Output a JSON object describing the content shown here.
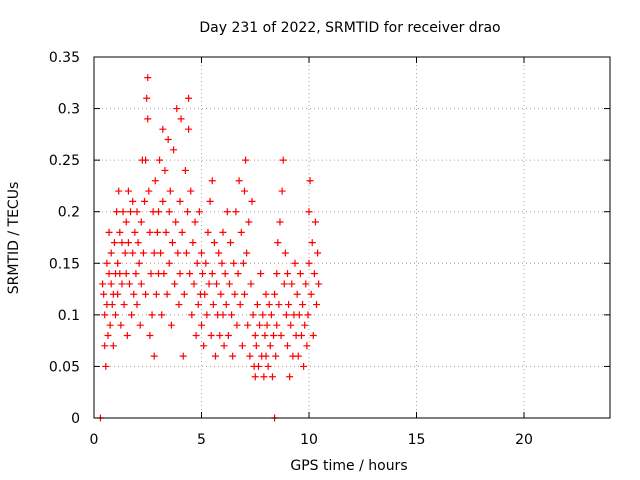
{
  "chart_data": {
    "type": "scatter",
    "title": "Day 231 of 2022, SRMTID for receiver drao",
    "xlabel": "GPS time / hours",
    "ylabel": "SRMTID / TECUs",
    "xlim": [
      0,
      24
    ],
    "ylim": [
      0,
      0.35
    ],
    "x_ticks": [
      0,
      5,
      10,
      15,
      20
    ],
    "x_tick_labels": [
      "0",
      "5",
      "10",
      "15",
      "20"
    ],
    "y_ticks": [
      0,
      0.05,
      0.1,
      0.15,
      0.2,
      0.25,
      0.3,
      0.35
    ],
    "y_tick_labels": [
      "0",
      "0.05",
      "0.1",
      "0.15",
      "0.2",
      "0.25",
      "0.3",
      "0.35"
    ],
    "grid": true,
    "marker": "plus",
    "color": "#ff0000",
    "series": [
      {
        "values": [
          [
            0.3,
            0.0
          ],
          [
            8.4,
            0.0
          ],
          [
            0.4,
            0.13
          ],
          [
            0.45,
            0.12
          ],
          [
            0.5,
            0.1
          ],
          [
            0.5,
            0.07
          ],
          [
            0.55,
            0.05
          ],
          [
            0.6,
            0.15
          ],
          [
            0.6,
            0.11
          ],
          [
            0.65,
            0.08
          ],
          [
            0.7,
            0.14
          ],
          [
            0.7,
            0.18
          ],
          [
            0.75,
            0.09
          ],
          [
            0.8,
            0.13
          ],
          [
            0.8,
            0.16
          ],
          [
            0.85,
            0.11
          ],
          [
            0.9,
            0.07
          ],
          [
            0.9,
            0.12
          ],
          [
            0.95,
            0.17
          ],
          [
            1.0,
            0.14
          ],
          [
            1.0,
            0.1
          ],
          [
            1.05,
            0.2
          ],
          [
            1.1,
            0.15
          ],
          [
            1.1,
            0.12
          ],
          [
            1.15,
            0.22
          ],
          [
            1.2,
            0.18
          ],
          [
            1.2,
            0.14
          ],
          [
            1.25,
            0.09
          ],
          [
            1.3,
            0.17
          ],
          [
            1.3,
            0.13
          ],
          [
            1.35,
            0.2
          ],
          [
            1.4,
            0.11
          ],
          [
            1.45,
            0.16
          ],
          [
            1.5,
            0.19
          ],
          [
            1.5,
            0.14
          ],
          [
            1.55,
            0.08
          ],
          [
            1.6,
            0.22
          ],
          [
            1.6,
            0.17
          ],
          [
            1.65,
            0.13
          ],
          [
            1.7,
            0.2
          ],
          [
            1.75,
            0.1
          ],
          [
            1.8,
            0.16
          ],
          [
            1.8,
            0.21
          ],
          [
            1.85,
            0.12
          ],
          [
            1.9,
            0.18
          ],
          [
            1.95,
            0.14
          ],
          [
            2.0,
            0.2
          ],
          [
            2.0,
            0.11
          ],
          [
            2.05,
            0.17
          ],
          [
            2.1,
            0.15
          ],
          [
            2.15,
            0.09
          ],
          [
            2.2,
            0.19
          ],
          [
            2.2,
            0.13
          ],
          [
            2.25,
            0.25
          ],
          [
            2.3,
            0.16
          ],
          [
            2.35,
            0.21
          ],
          [
            2.4,
            0.25
          ],
          [
            2.4,
            0.12
          ],
          [
            2.45,
            0.31
          ],
          [
            2.5,
            0.33
          ],
          [
            2.5,
            0.29
          ],
          [
            2.55,
            0.22
          ],
          [
            2.6,
            0.18
          ],
          [
            2.6,
            0.08
          ],
          [
            2.65,
            0.14
          ],
          [
            2.7,
            0.1
          ],
          [
            2.75,
            0.2
          ],
          [
            2.8,
            0.06
          ],
          [
            2.8,
            0.16
          ],
          [
            2.85,
            0.23
          ],
          [
            2.9,
            0.12
          ],
          [
            2.95,
            0.18
          ],
          [
            3.0,
            0.2
          ],
          [
            3.0,
            0.14
          ],
          [
            3.05,
            0.25
          ],
          [
            3.1,
            0.16
          ],
          [
            3.15,
            0.1
          ],
          [
            3.2,
            0.28
          ],
          [
            3.2,
            0.21
          ],
          [
            3.25,
            0.14
          ],
          [
            3.3,
            0.24
          ],
          [
            3.35,
            0.18
          ],
          [
            3.4,
            0.12
          ],
          [
            3.45,
            0.27
          ],
          [
            3.5,
            0.2
          ],
          [
            3.5,
            0.15
          ],
          [
            3.55,
            0.22
          ],
          [
            3.6,
            0.09
          ],
          [
            3.65,
            0.17
          ],
          [
            3.7,
            0.26
          ],
          [
            3.75,
            0.13
          ],
          [
            3.8,
            0.19
          ],
          [
            3.85,
            0.3
          ],
          [
            3.9,
            0.16
          ],
          [
            3.95,
            0.11
          ],
          [
            4.0,
            0.21
          ],
          [
            4.0,
            0.14
          ],
          [
            4.05,
            0.29
          ],
          [
            4.1,
            0.18
          ],
          [
            4.15,
            0.06
          ],
          [
            4.2,
            0.12
          ],
          [
            4.25,
            0.24
          ],
          [
            4.3,
            0.16
          ],
          [
            4.35,
            0.2
          ],
          [
            4.4,
            0.31
          ],
          [
            4.4,
            0.28
          ],
          [
            4.45,
            0.14
          ],
          [
            4.5,
            0.22
          ],
          [
            4.55,
            0.1
          ],
          [
            4.6,
            0.17
          ],
          [
            4.65,
            0.13
          ],
          [
            4.7,
            0.19
          ],
          [
            4.75,
            0.08
          ],
          [
            4.8,
            0.15
          ],
          [
            4.85,
            0.11
          ],
          [
            4.9,
            0.2
          ],
          [
            4.95,
            0.12
          ],
          [
            5.0,
            0.16
          ],
          [
            5.0,
            0.09
          ],
          [
            5.05,
            0.14
          ],
          [
            5.1,
            0.07
          ],
          [
            5.15,
            0.12
          ],
          [
            5.2,
            0.15
          ],
          [
            5.25,
            0.1
          ],
          [
            5.3,
            0.18
          ],
          [
            5.35,
            0.13
          ],
          [
            5.4,
            0.21
          ],
          [
            5.45,
            0.08
          ],
          [
            5.5,
            0.14
          ],
          [
            5.5,
            0.23
          ],
          [
            5.55,
            0.11
          ],
          [
            5.6,
            0.17
          ],
          [
            5.65,
            0.06
          ],
          [
            5.7,
            0.13
          ],
          [
            5.75,
            0.1
          ],
          [
            5.8,
            0.16
          ],
          [
            5.85,
            0.08
          ],
          [
            5.9,
            0.12
          ],
          [
            5.95,
            0.15
          ],
          [
            6.0,
            0.1
          ],
          [
            6.0,
            0.18
          ],
          [
            6.05,
            0.07
          ],
          [
            6.1,
            0.14
          ],
          [
            6.15,
            0.11
          ],
          [
            6.2,
            0.2
          ],
          [
            6.25,
            0.08
          ],
          [
            6.3,
            0.13
          ],
          [
            6.35,
            0.17
          ],
          [
            6.4,
            0.1
          ],
          [
            6.45,
            0.06
          ],
          [
            6.5,
            0.15
          ],
          [
            6.55,
            0.12
          ],
          [
            6.6,
            0.2
          ],
          [
            6.65,
            0.09
          ],
          [
            6.7,
            0.14
          ],
          [
            6.75,
            0.23
          ],
          [
            6.8,
            0.11
          ],
          [
            6.85,
            0.18
          ],
          [
            6.9,
            0.07
          ],
          [
            6.95,
            0.15
          ],
          [
            7.0,
            0.12
          ],
          [
            7.0,
            0.22
          ],
          [
            7.05,
            0.25
          ],
          [
            7.1,
            0.16
          ],
          [
            7.15,
            0.09
          ],
          [
            7.2,
            0.19
          ],
          [
            7.25,
            0.06
          ],
          [
            7.3,
            0.13
          ],
          [
            7.35,
            0.21
          ],
          [
            7.4,
            0.1
          ],
          [
            7.45,
            0.05
          ],
          [
            7.5,
            0.08
          ],
          [
            7.5,
            0.04
          ],
          [
            7.55,
            0.07
          ],
          [
            7.6,
            0.11
          ],
          [
            7.65,
            0.05
          ],
          [
            7.7,
            0.09
          ],
          [
            7.75,
            0.14
          ],
          [
            7.8,
            0.06
          ],
          [
            7.85,
            0.1
          ],
          [
            7.9,
            0.04
          ],
          [
            7.95,
            0.08
          ],
          [
            8.0,
            0.12
          ],
          [
            8.0,
            0.06
          ],
          [
            8.05,
            0.09
          ],
          [
            8.1,
            0.05
          ],
          [
            8.15,
            0.11
          ],
          [
            8.2,
            0.07
          ],
          [
            8.25,
            0.1
          ],
          [
            8.3,
            0.04
          ],
          [
            8.35,
            0.08
          ],
          [
            8.4,
            0.12
          ],
          [
            8.45,
            0.06
          ],
          [
            8.5,
            0.14
          ],
          [
            8.5,
            0.09
          ],
          [
            8.55,
            0.17
          ],
          [
            8.6,
            0.11
          ],
          [
            8.65,
            0.19
          ],
          [
            8.7,
            0.08
          ],
          [
            8.75,
            0.22
          ],
          [
            8.8,
            0.25
          ],
          [
            8.85,
            0.13
          ],
          [
            8.9,
            0.16
          ],
          [
            8.95,
            0.1
          ],
          [
            9.0,
            0.07
          ],
          [
            9.0,
            0.14
          ],
          [
            9.05,
            0.11
          ],
          [
            9.1,
            0.04
          ],
          [
            9.15,
            0.09
          ],
          [
            9.2,
            0.13
          ],
          [
            9.25,
            0.06
          ],
          [
            9.3,
            0.1
          ],
          [
            9.35,
            0.15
          ],
          [
            9.4,
            0.08
          ],
          [
            9.45,
            0.12
          ],
          [
            9.5,
            0.06
          ],
          [
            9.55,
            0.1
          ],
          [
            9.6,
            0.14
          ],
          [
            9.65,
            0.08
          ],
          [
            9.7,
            0.11
          ],
          [
            9.75,
            0.05
          ],
          [
            9.8,
            0.09
          ],
          [
            9.85,
            0.13
          ],
          [
            9.9,
            0.07
          ],
          [
            9.95,
            0.1
          ],
          [
            10.0,
            0.2
          ],
          [
            10.0,
            0.15
          ],
          [
            10.05,
            0.23
          ],
          [
            10.1,
            0.12
          ],
          [
            10.15,
            0.17
          ],
          [
            10.2,
            0.08
          ],
          [
            10.25,
            0.14
          ],
          [
            10.3,
            0.19
          ],
          [
            10.35,
            0.11
          ],
          [
            10.4,
            0.16
          ],
          [
            10.45,
            0.13
          ]
        ]
      }
    ]
  }
}
